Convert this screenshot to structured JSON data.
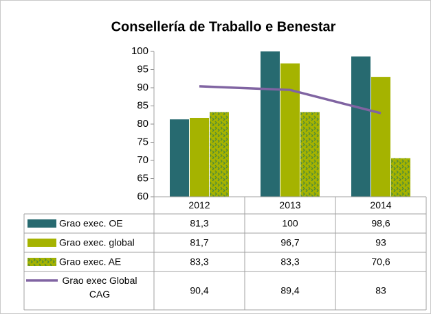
{
  "chart_data": {
    "type": "bar",
    "title": "Consellería de Traballo e Benestar",
    "categories": [
      "2012",
      "2013",
      "2014"
    ],
    "ylim": [
      60,
      100
    ],
    "yticks": [
      60,
      65,
      70,
      75,
      80,
      85,
      90,
      95,
      100
    ],
    "series": [
      {
        "name": "Grao exec. OE",
        "type": "bar",
        "color": "#276a70",
        "values": [
          81.3,
          100,
          98.6
        ],
        "value_labels": [
          "81,3",
          "100",
          "98,6"
        ]
      },
      {
        "name": "Grao exec. global",
        "type": "bar",
        "color": "#a5b300",
        "values": [
          81.7,
          96.7,
          93
        ],
        "value_labels": [
          "81,7",
          "96,7",
          "93"
        ]
      },
      {
        "name": "Grao exec. AE",
        "type": "bar",
        "color": "#a5b300",
        "pattern_color": "#4f8b3a",
        "values": [
          83.3,
          83.3,
          70.6
        ],
        "value_labels": [
          "83,3",
          "83,3",
          "70,6"
        ]
      },
      {
        "name": "Grao exec Global CAG",
        "type": "line",
        "color": "#8064a2",
        "values": [
          90.4,
          89.4,
          83
        ],
        "value_labels": [
          "90,4",
          "89,4",
          "83"
        ]
      }
    ]
  }
}
